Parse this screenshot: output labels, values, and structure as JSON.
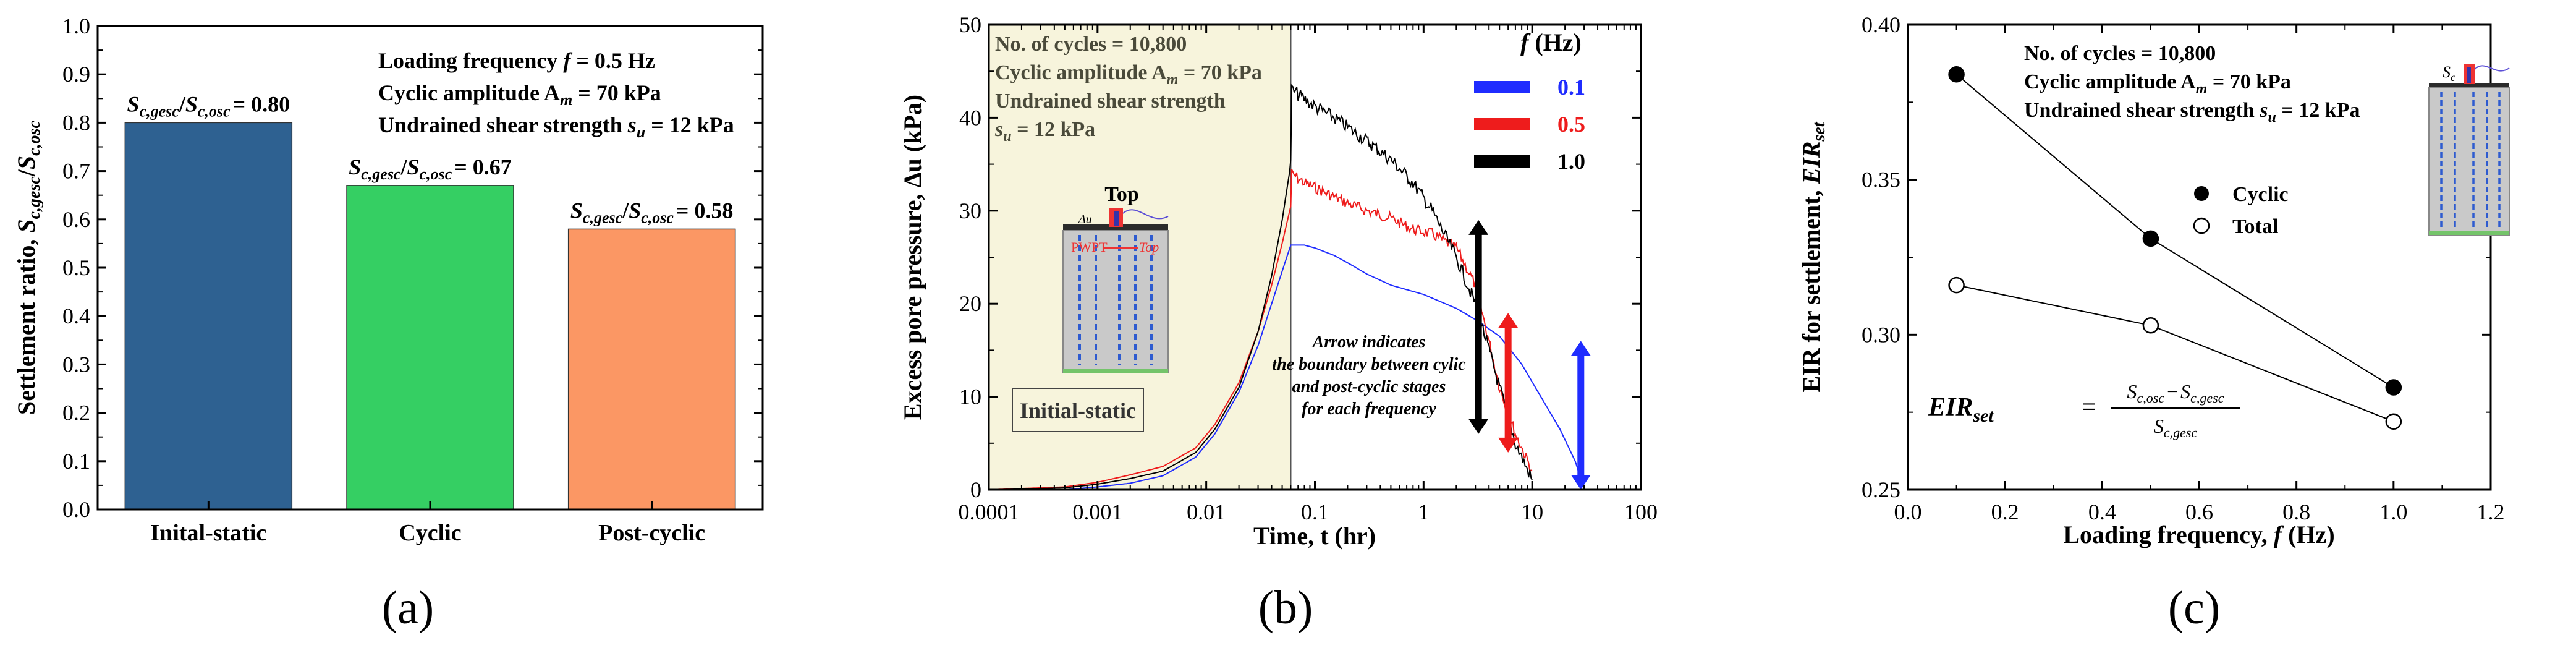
{
  "chart_data": [
    {
      "type": "bar",
      "panel_label": "(a)",
      "ylabel": "Settlement ratio, S_c,gesc/S_c,osc",
      "ylabel_parts": [
        "Settlement ratio, ",
        "S",
        "c,gesc",
        "/",
        "S",
        "c,osc"
      ],
      "ylim": [
        0,
        1.0
      ],
      "yticks": [
        "0.0",
        "0.1",
        "0.2",
        "0.3",
        "0.4",
        "0.5",
        "0.6",
        "0.7",
        "0.8",
        "0.9",
        "1.0"
      ],
      "categories": [
        "Inital-static",
        "Cyclic",
        "Post-cyclic"
      ],
      "values": [
        0.8,
        0.67,
        0.58
      ],
      "colors": [
        "#2e6191",
        "#35cf63",
        "#fb9764"
      ],
      "bar_labels": [
        "= 0.80",
        "= 0.67",
        "= 0.58"
      ],
      "bar_label_prefix": [
        "S",
        "c,gesc",
        "/",
        "S",
        "c,osc"
      ],
      "annotations": [
        "Loading frequency f = 0.5 Hz",
        "Cyclic amplitude A_m = 70 kPa",
        "Undrained shear strength s_u = 12 kPa"
      ],
      "annotation_parts": [
        [
          "Loading frequency ",
          "f",
          " = 0.5 Hz"
        ],
        [
          "Cyclic amplitude A",
          "m",
          " = 70 kPa"
        ],
        [
          "Undrained shear strength ",
          "s",
          "u",
          " = 12 kPa"
        ]
      ]
    },
    {
      "type": "line",
      "panel_label": "(b)",
      "xlabel": "Time, t (hr)",
      "ylabel": "Excess pore pressure, Δu (kPa)",
      "xscale": "log",
      "xlim": [
        0.0001,
        100
      ],
      "ylim": [
        0,
        50
      ],
      "xticks": [
        "0.0001",
        "0.001",
        "0.01",
        "0.1",
        "1",
        "10",
        "100"
      ],
      "yticks": [
        "0",
        "10",
        "20",
        "30",
        "40",
        "50"
      ],
      "legend_title": "f (Hz)",
      "legend_title_parts": [
        "f",
        " (Hz)"
      ],
      "series": [
        {
          "name": "0.1",
          "color": "#1f2cff",
          "x": [
            0.0001,
            0.0005,
            0.001,
            0.002,
            0.004,
            0.008,
            0.012,
            0.02,
            0.03,
            0.04,
            0.05,
            0.06,
            0.08,
            0.1,
            0.15,
            0.2,
            0.3,
            0.5,
            1,
            2,
            3,
            5,
            8,
            12,
            18,
            25,
            30
          ],
          "y": [
            0,
            0,
            0.3,
            0.7,
            1.5,
            3.5,
            6,
            10.5,
            15.5,
            20,
            23.5,
            26.3,
            26.3,
            26,
            25.2,
            24.4,
            23.2,
            22,
            21,
            19.5,
            18.3,
            16.5,
            13.5,
            10,
            6.5,
            3,
            0
          ]
        },
        {
          "name": "0.5",
          "color": "#ee1c1c",
          "x": [
            0.0001,
            0.0005,
            0.001,
            0.002,
            0.004,
            0.008,
            0.012,
            0.02,
            0.03,
            0.04,
            0.05,
            0.06,
            0.061,
            0.08,
            0.1,
            0.15,
            0.2,
            0.3,
            0.5,
            0.8,
            1.2,
            2,
            3,
            4,
            5,
            7,
            10
          ],
          "y": [
            0,
            0.3,
            0.8,
            1.6,
            2.5,
            4.5,
            7,
            11.5,
            17,
            22,
            26.5,
            30.5,
            34,
            33,
            32.5,
            31.5,
            30.8,
            30,
            29.2,
            28,
            27.5,
            26,
            22,
            16,
            11,
            6,
            2
          ]
        },
        {
          "name": "1.0",
          "color": "#000000",
          "x": [
            0.0001,
            0.0005,
            0.001,
            0.002,
            0.004,
            0.008,
            0.012,
            0.02,
            0.03,
            0.04,
            0.05,
            0.06,
            0.061,
            0.07,
            0.1,
            0.15,
            0.2,
            0.3,
            0.5,
            0.8,
            1.2,
            2,
            3,
            4,
            5,
            7,
            10
          ],
          "y": [
            0,
            0.2,
            0.6,
            1.2,
            2,
            4,
            6.5,
            11,
            17,
            23,
            29,
            35,
            43,
            42.5,
            41.2,
            40,
            39,
            37.5,
            35.5,
            33,
            30,
            25,
            20,
            15,
            11,
            5,
            1
          ]
        }
      ],
      "annotations": [
        "No. of cycles = 10,800",
        "Cyclic amplitude A_m = 70 kPa",
        "Undrained shear strength",
        "s_u = 12 kPa"
      ],
      "annotation_parts": [
        [
          "No. of cycles = 10,800"
        ],
        [
          "Cyclic amplitude A",
          "m",
          " = 70 kPa"
        ],
        [
          "Undrained shear strength"
        ],
        [
          "s",
          "u",
          " = 12 kPa"
        ]
      ],
      "shaded_region_label": "Initial-static",
      "shaded_region_xlim": [
        0.0001,
        0.06
      ],
      "arrow_note": [
        "Arrow indicates",
        "the boundary between cylic",
        "and post-cyclic stages",
        "for each frequency"
      ],
      "boundary_arrows": [
        {
          "series": "1.0",
          "x": 3.2,
          "y_range": [
            6,
            29
          ]
        },
        {
          "series": "0.5",
          "x": 6.0,
          "y_range": [
            4,
            19
          ]
        },
        {
          "series": "0.1",
          "x": 28,
          "y_range": [
            0,
            16
          ]
        }
      ],
      "inset_labels": [
        "Top",
        "Δu",
        "PWPT",
        "Top"
      ]
    },
    {
      "type": "scatter",
      "panel_label": "(c)",
      "xlabel": "Loading frequency, f (Hz)",
      "xlabel_parts": [
        "Loading frequency, ",
        "f",
        " (Hz)"
      ],
      "ylabel": "EIR for settlement, EIR_set",
      "ylabel_parts": [
        "EIR for settlement, ",
        "EIR",
        "set"
      ],
      "xlim": [
        0.0,
        1.2
      ],
      "ylim": [
        0.25,
        0.4
      ],
      "xticks": [
        "0.0",
        "0.2",
        "0.4",
        "0.6",
        "0.8",
        "1.0",
        "1.2"
      ],
      "yticks": [
        "0.25",
        "0.30",
        "0.35",
        "0.40"
      ],
      "series": [
        {
          "name": "Cyclic",
          "marker": "filled-circle",
          "x": [
            0.1,
            0.5,
            1.0
          ],
          "y": [
            0.384,
            0.331,
            0.283
          ]
        },
        {
          "name": "Total",
          "marker": "open-circle",
          "x": [
            0.1,
            0.5,
            1.0
          ],
          "y": [
            0.316,
            0.303,
            0.272
          ]
        }
      ],
      "annotations": [
        "No. of cycles = 10,800",
        "Cyclic amplitude A_m = 70 kPa",
        "Undrained shear strength s_u = 12 kPa"
      ],
      "annotation_parts": [
        [
          "No. of cycles = 10,800"
        ],
        [
          "Cyclic amplitude A",
          "m",
          " = 70 kPa"
        ],
        [
          "Undrained shear strength ",
          "s",
          "u",
          " = 12 kPa"
        ]
      ],
      "formula": "EIR_set = (S_c,osc − S_c,gesc) / S_c,gesc",
      "formula_parts": {
        "lhs": "EIR",
        "lhs_sub": "set",
        "eq": "=",
        "num": [
          "S",
          "c,osc",
          "−",
          "S",
          "c,gesc"
        ],
        "den": [
          "S",
          "c,gesc"
        ]
      },
      "inset_labels": [
        "S",
        "c"
      ]
    }
  ]
}
